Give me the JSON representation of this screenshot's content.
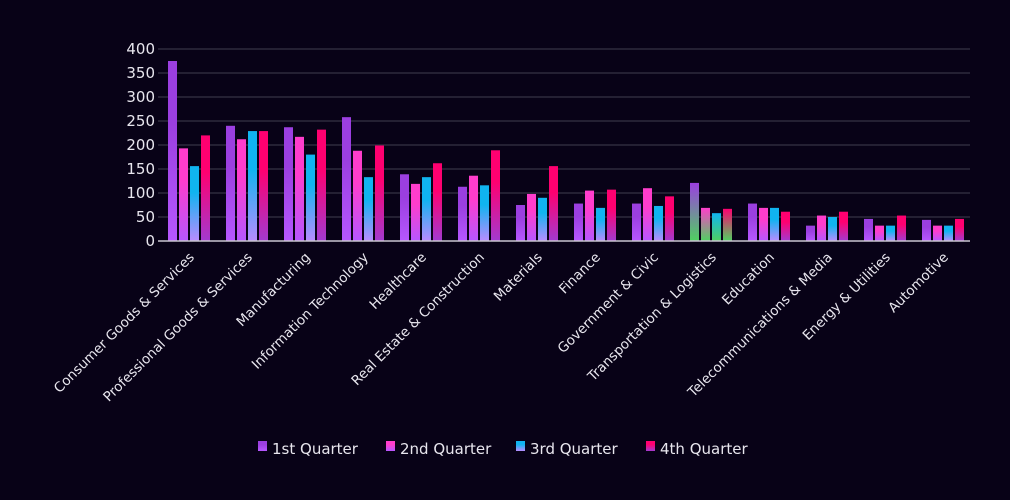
{
  "chart_data": {
    "type": "bar",
    "title": "",
    "xlabel": "",
    "ylabel": "",
    "ylim": [
      0,
      400
    ],
    "yticks": [
      0,
      50,
      100,
      150,
      200,
      250,
      300,
      350,
      400
    ],
    "grid": true,
    "legend_position": "bottom",
    "categories": [
      "Consumer Goods & Services",
      "Professional Goods & Services",
      "Manufacturing",
      "Information Technology",
      "Healthcare",
      "Real Estate & Construction",
      "Materials",
      "Finance",
      "Government & Civic",
      "Transportation & Logistics",
      "Education",
      "Telecommunications & Media",
      "Energy & Utilities",
      "Automotive"
    ],
    "series": [
      {
        "name": "1st Quarter",
        "color": "#9b3fe0",
        "color_bottom": "#b657ff",
        "values": [
          375,
          240,
          237,
          258,
          139,
          113,
          75,
          78,
          78,
          121,
          78,
          32,
          46,
          44
        ]
      },
      {
        "name": "2nd Quarter",
        "color": "#ff3dcc",
        "color_bottom": "#b657ff",
        "values": [
          193,
          212,
          217,
          188,
          119,
          136,
          98,
          105,
          110,
          69,
          69,
          53,
          32,
          32
        ]
      },
      {
        "name": "3rd Quarter",
        "color": "#10b4f0",
        "color_bottom": "#b98cff",
        "values": [
          156,
          229,
          180,
          133,
          133,
          116,
          90,
          69,
          73,
          58,
          69,
          50,
          32,
          32
        ]
      },
      {
        "name": "4th Quarter",
        "color": "#ff0070",
        "color_bottom": "#a23ad0",
        "values": [
          220,
          229,
          232,
          199,
          162,
          189,
          156,
          107,
          93,
          67,
          61,
          61,
          53,
          46
        ]
      }
    ],
    "highlight_category_color": "#4fd160"
  }
}
